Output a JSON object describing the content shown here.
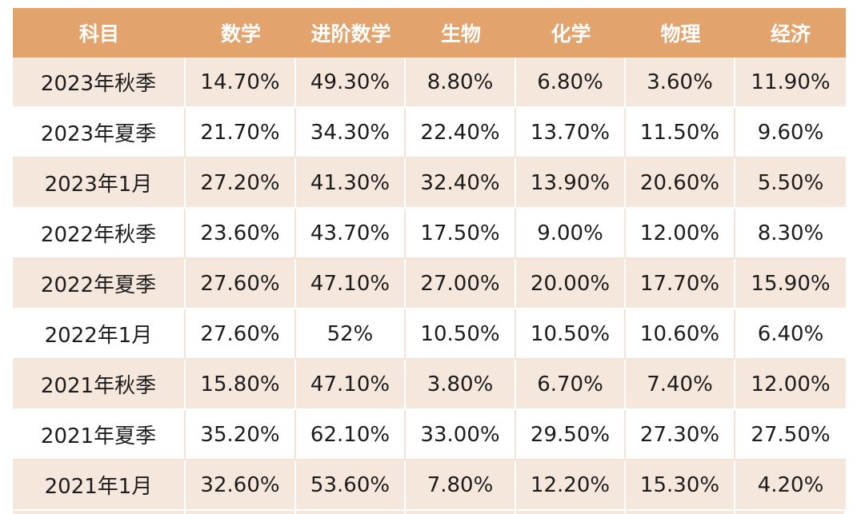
{
  "table": {
    "headers": [
      "科目",
      "数学",
      "进阶数学",
      "生物",
      "化学",
      "物理",
      "经济"
    ],
    "rows": [
      [
        "2023年秋季",
        "14.70%",
        "49.30%",
        "8.80%",
        "6.80%",
        "3.60%",
        "11.90%"
      ],
      [
        "2023年夏季",
        "21.70%",
        "34.30%",
        "22.40%",
        "13.70%",
        "11.50%",
        "9.60%"
      ],
      [
        "2023年1月",
        "27.20%",
        "41.30%",
        "32.40%",
        "13.90%",
        "20.60%",
        "5.50%"
      ],
      [
        "2022年秋季",
        "23.60%",
        "43.70%",
        "17.50%",
        "9.00%",
        "12.00%",
        "8.30%"
      ],
      [
        "2022年夏季",
        "27.60%",
        "47.10%",
        "27.00%",
        "20.00%",
        "17.70%",
        "15.90%"
      ],
      [
        "2022年1月",
        "27.60%",
        "52%",
        "10.50%",
        "10.50%",
        "10.60%",
        "6.40%"
      ],
      [
        "2021年秋季",
        "15.80%",
        "47.10%",
        "3.80%",
        "6.70%",
        "7.40%",
        "12.00%"
      ],
      [
        "2021年夏季",
        "35.20%",
        "62.10%",
        "33.00%",
        "29.50%",
        "27.30%",
        "27.50%"
      ],
      [
        "2021年1月",
        "32.60%",
        "53.60%",
        "7.80%",
        "12.20%",
        "15.30%",
        "4.20%"
      ]
    ]
  },
  "colors": {
    "header_bg": "#e3a36c",
    "header_text": "#ffffff",
    "row_tint": "#f6e7dc",
    "row_plain": "#ffffff"
  }
}
